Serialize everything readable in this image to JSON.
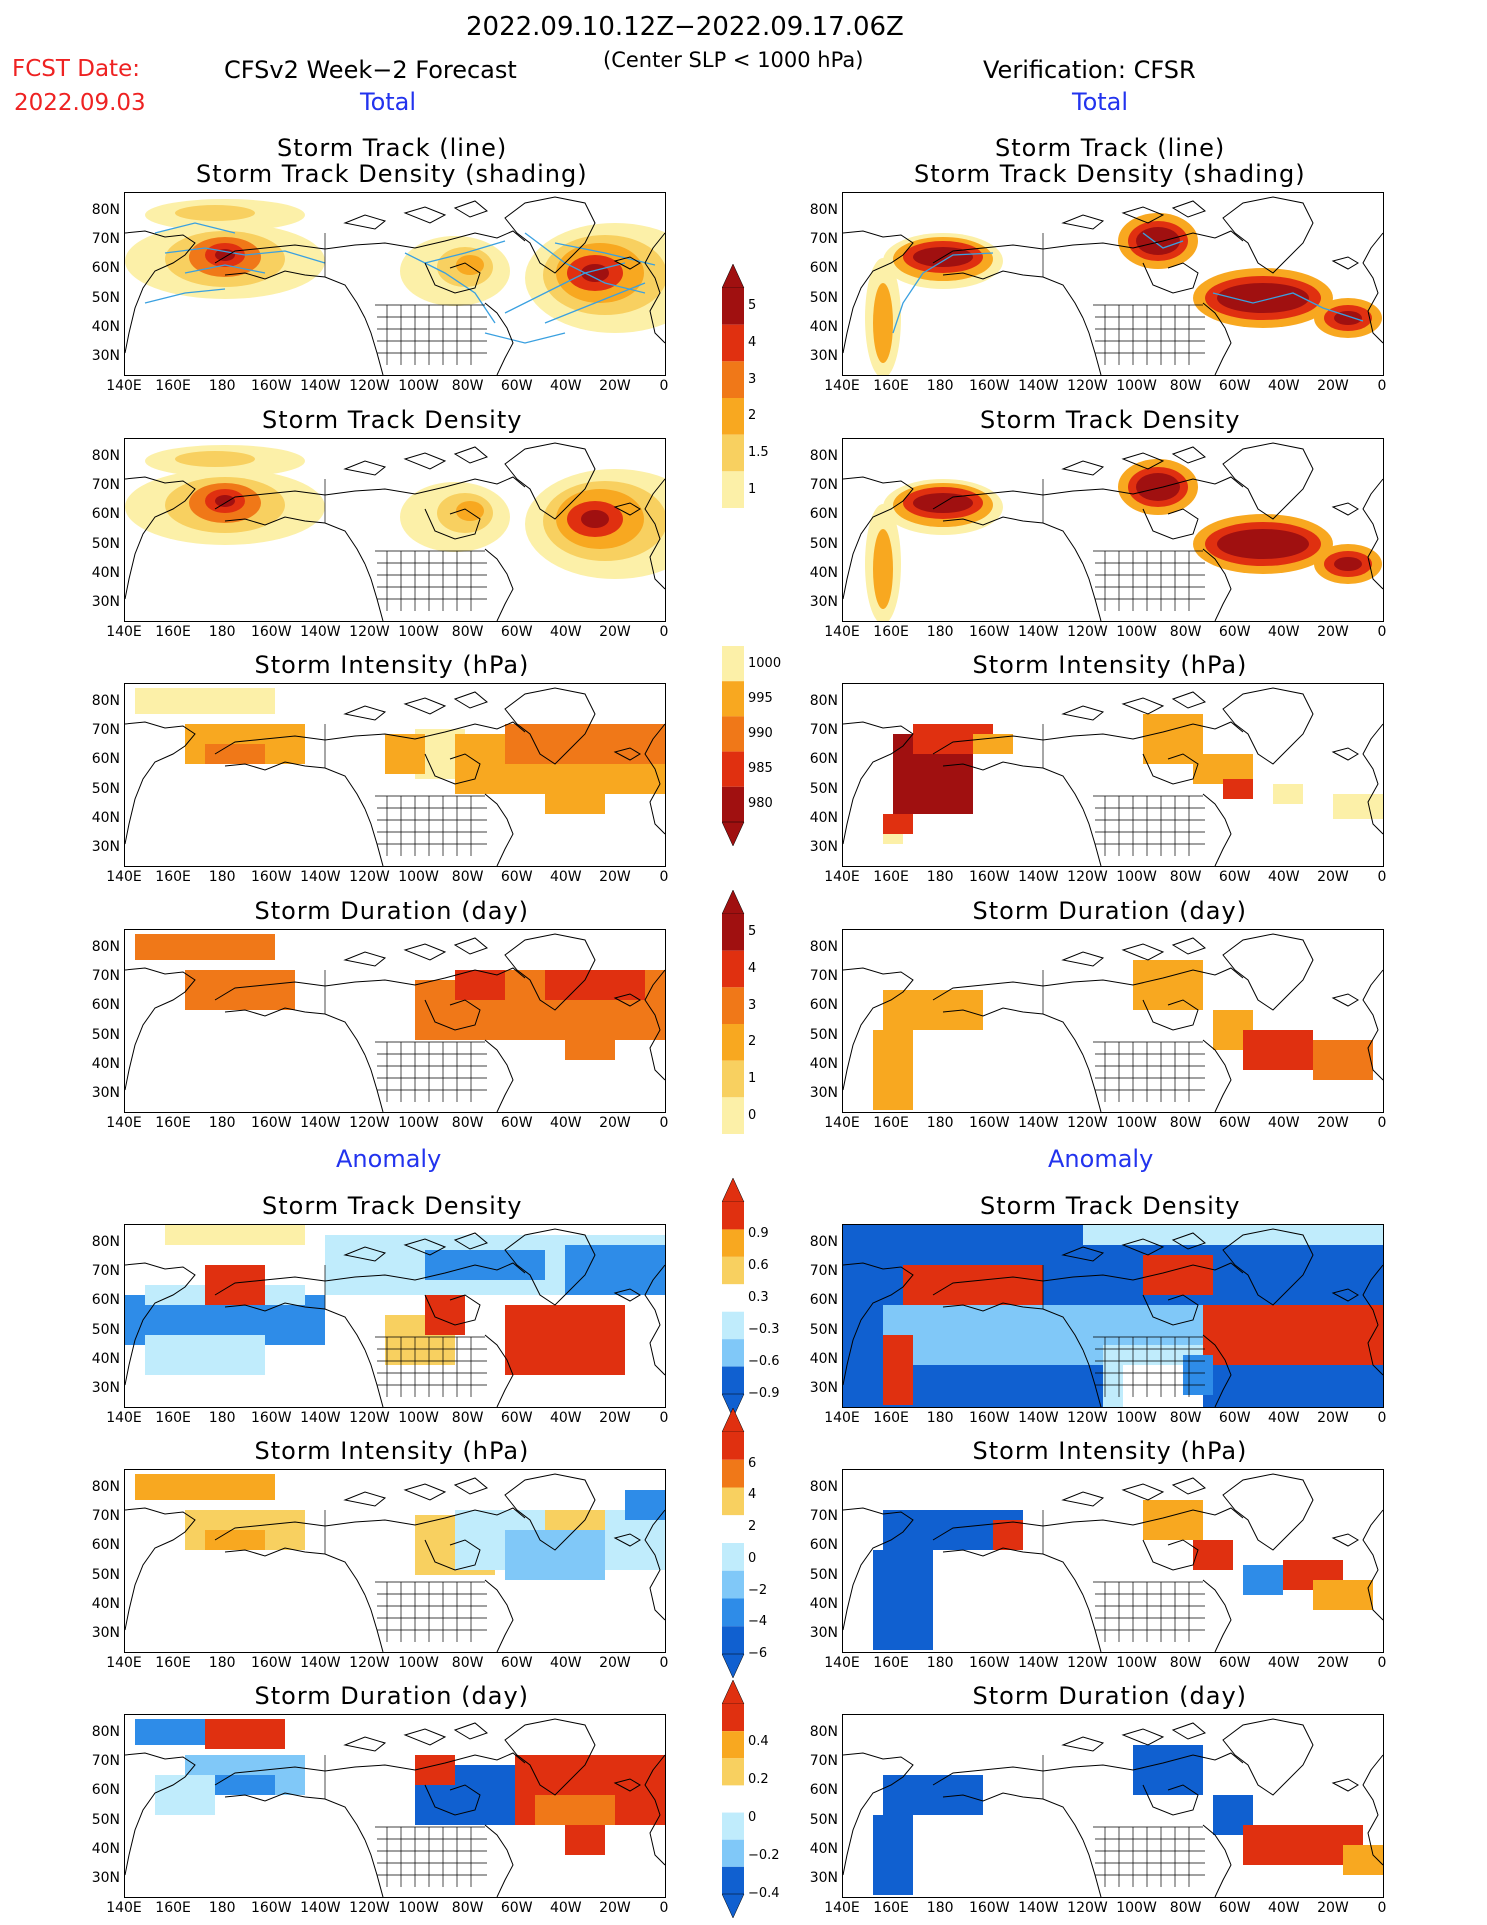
{
  "header": {
    "date_range": "2022.09.10.12Z−2022.09.17.06Z",
    "criterion": "(Center SLP < 1000 hPa)",
    "fcst_label": "FCST Date:",
    "fcst_date": "2022.09.03",
    "left_title": "CFSv2 Week−2 Forecast",
    "right_title": "Verification: CFSR",
    "total_label": "Total",
    "anomaly_label": "Anomaly"
  },
  "panel_titles": {
    "track_line": "Storm Track (line)",
    "track_shading": "Storm Track Density (shading)",
    "density": "Storm Track Density",
    "intensity": "Storm Intensity (hPa)",
    "duration": "Storm Duration (day)"
  },
  "axes": {
    "lat_labels": [
      "80N",
      "70N",
      "60N",
      "50N",
      "40N",
      "30N"
    ],
    "lon_labels": [
      "140E",
      "160E",
      "180",
      "160W",
      "140W",
      "120W",
      "100W",
      "80W",
      "60W",
      "40W",
      "20W",
      "0"
    ]
  },
  "colorbars": {
    "density_total": [
      "5",
      "4",
      "3",
      "2",
      "1.5",
      "1"
    ],
    "intensity_total": [
      "1000",
      "995",
      "990",
      "985",
      "980"
    ],
    "duration_total": [
      "5",
      "4",
      "3",
      "2",
      "1",
      "0"
    ],
    "density_anom": [
      "0.9",
      "0.6",
      "0.3",
      "−0.3",
      "−0.6",
      "−0.9"
    ],
    "intensity_anom": [
      "6",
      "4",
      "2",
      "0",
      "−2",
      "−4",
      "−6"
    ],
    "duration_anom": [
      "0.4",
      "0.2",
      "0",
      "−0.2",
      "−0.4"
    ]
  },
  "colors": {
    "dark_red": "#a01010",
    "red": "#e03010",
    "orange": "#f07818",
    "amber": "#f8a820",
    "yellow": "#f8d060",
    "pale_yellow": "#fcf0a8",
    "light_blue": "#c0ecfc",
    "sky_blue": "#80c8f8",
    "blue": "#2e8ce8",
    "deep_blue": "#1060d0",
    "track_line": "#3aa0e0"
  }
}
